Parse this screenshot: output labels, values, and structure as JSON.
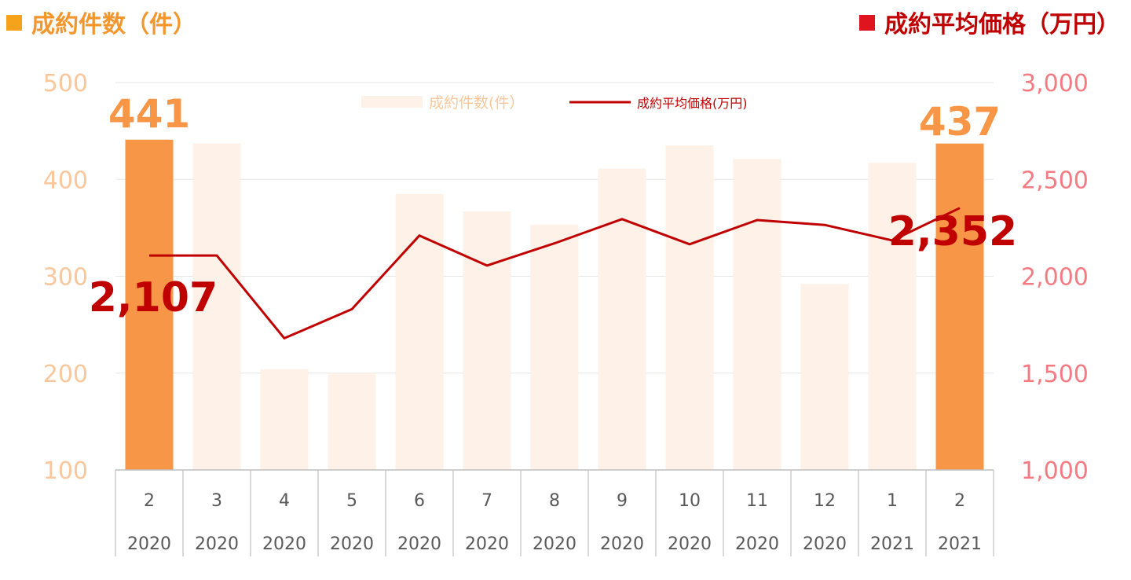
{
  "header": {
    "left_title": "成約件数（件）",
    "right_title": "成約平均価格（万円）"
  },
  "colors": {
    "bar_highlight": "#f79646",
    "bar_light": "#fdf1e8",
    "line": "#c00000",
    "left_axis": "#fac79c",
    "right_axis": "#f57b82",
    "left_title": "#f2962e",
    "left_square": "#f7a21b",
    "right_square": "#e0141e",
    "grid": "#e6e6e6"
  },
  "chart_data": {
    "type": "bar",
    "categories": [
      "2",
      "3",
      "4",
      "5",
      "6",
      "7",
      "8",
      "9",
      "10",
      "11",
      "12",
      "1",
      "2"
    ],
    "year_labels": [
      "2020",
      "2020",
      "2020",
      "2020",
      "2020",
      "2020",
      "2020",
      "2020",
      "2020",
      "2020",
      "2020",
      "2021",
      "2021"
    ],
    "series": [
      {
        "name": "成約件数(件）",
        "type": "bar",
        "axis": "left",
        "values": [
          441,
          437,
          204,
          200,
          385,
          367,
          353,
          411,
          435,
          421,
          292,
          417,
          437
        ],
        "highlight_indices": [
          0,
          12
        ]
      },
      {
        "name": "成約平均価格(万円)",
        "type": "line",
        "axis": "right",
        "values": [
          2107,
          2107,
          1680,
          1830,
          2210,
          2055,
          2170,
          2295,
          2165,
          2290,
          2265,
          2185,
          2352
        ]
      }
    ],
    "left_axis": {
      "min": 100,
      "max": 500,
      "ticks": [
        "100",
        "200",
        "300",
        "400",
        "500"
      ]
    },
    "right_axis": {
      "min": 1000,
      "max": 3000,
      "ticks": [
        "1,000",
        "1,500",
        "2,000",
        "2,500",
        "3,000"
      ]
    },
    "annotations": {
      "first_bar": "441",
      "last_bar": "437",
      "first_price": "2,107",
      "last_price": "2,352"
    },
    "grid": true,
    "legend": "top-center"
  }
}
